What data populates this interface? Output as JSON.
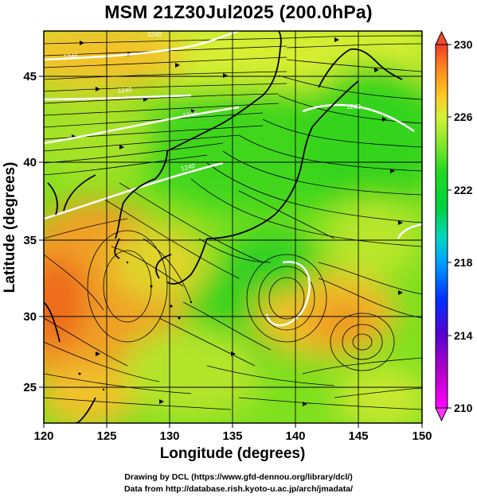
{
  "title": "MSM 21Z30Jul2025 (200.0hPa)",
  "x_axis": {
    "label": "Longitude (degrees)",
    "ticks": [
      "120",
      "125",
      "130",
      "135",
      "140",
      "145",
      "150"
    ]
  },
  "y_axis": {
    "label": "Latitude  (degrees)",
    "ticks": [
      "25",
      "30",
      "35",
      "40",
      "45"
    ]
  },
  "colorbar": {
    "ticks": [
      "230",
      "226",
      "222",
      "218",
      "214",
      "210"
    ]
  },
  "contour_labels": [
    "1240",
    "1240",
    "1240",
    "1240",
    "1240",
    "1240"
  ],
  "credits": {
    "line1": "Drawing by DCL (https://www.gfd-dennou.org/library/dcl/)",
    "line2": "Data from http://database.rish.kyoto-u.ac.jp/arch/jmadata/"
  },
  "chart_data": {
    "type": "heatmap",
    "title": "MSM 21Z30Jul2025 (200.0hPa)",
    "xlabel": "Longitude (degrees)",
    "ylabel": "Latitude  (degrees)",
    "xlim": [
      120,
      150
    ],
    "ylim": [
      22.5,
      47.5
    ],
    "colorbar_range": [
      210,
      230
    ],
    "colors": {
      "warm": "#e8641a",
      "mid": "#b5e62e",
      "cool": "#22cc22"
    },
    "overlays": [
      "streamlines",
      "coastlines",
      "height contours (white)"
    ]
  }
}
